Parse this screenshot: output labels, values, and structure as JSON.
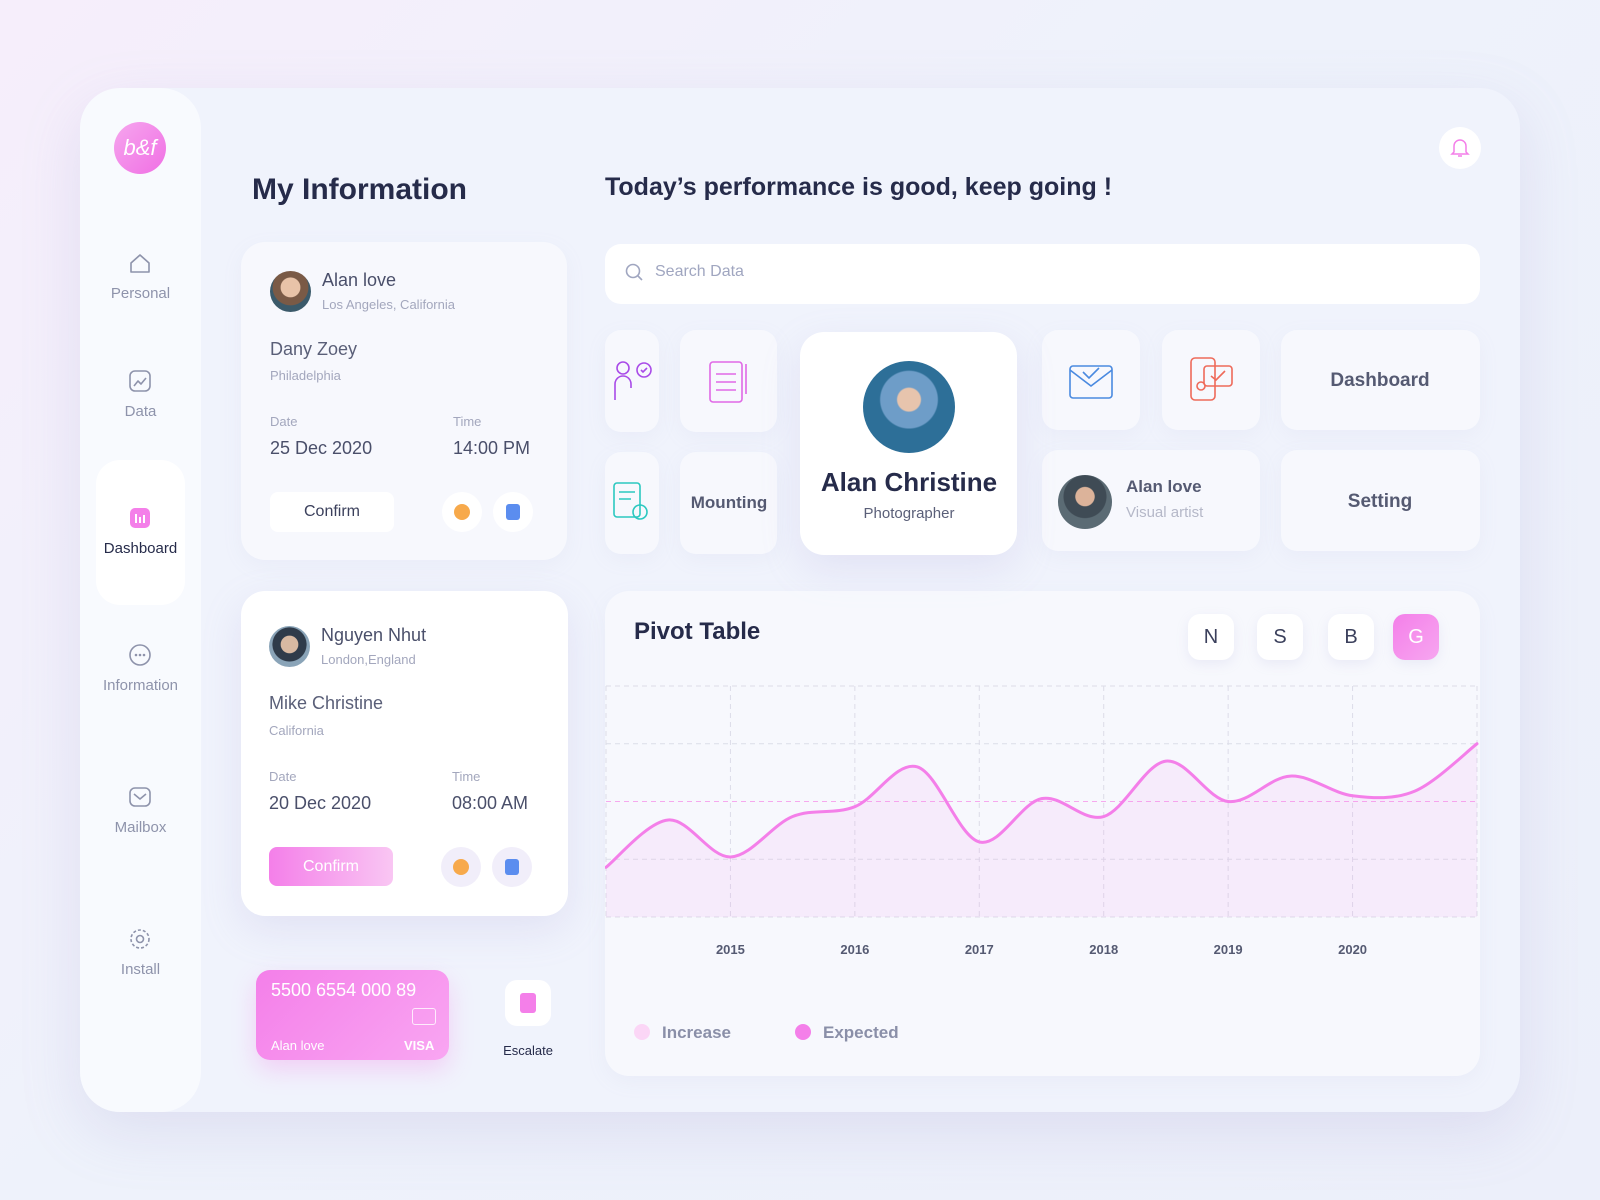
{
  "logo": "b&f",
  "sidebar": {
    "items": [
      "Personal",
      "Data",
      "Dashboard",
      "Information",
      "Mailbox",
      "Install"
    ]
  },
  "info": {
    "title": "My Information",
    "cards": [
      {
        "user": "Alan love",
        "location": "Los Angeles, California",
        "client": "Dany Zoey",
        "city": "Philadelphia",
        "date_label": "Date",
        "date": "25 Dec 2020",
        "time_label": "Time",
        "time": "14:00 PM",
        "button": "Confirm"
      },
      {
        "user": "Nguyen Nhut",
        "location": "London,England",
        "client": "Mike Christine",
        "city": "California",
        "date_label": "Date",
        "date": "20 Dec 2020",
        "time_label": "Time",
        "time": "08:00 AM",
        "button": "Confirm"
      }
    ]
  },
  "payment_card": {
    "number": "5500 6554 000 89",
    "holder": "Alan love",
    "brand": "VISA"
  },
  "escalate": "Escalate",
  "headline": "Today’s performance is good, keep going !",
  "search": {
    "placeholder": "Search Data"
  },
  "tiles": {
    "mounting": "Mounting",
    "dashboard": "Dashboard",
    "setting": "Setting"
  },
  "featured_profile": {
    "name": "Alan Christine",
    "role": "Photographer"
  },
  "mini_profile": {
    "name": "Alan love",
    "role": "Visual artist"
  },
  "chart_data": {
    "type": "line",
    "title": "Pivot Table",
    "filters": [
      "N",
      "S",
      "B",
      "G"
    ],
    "categories": [
      null,
      null,
      "2015",
      null,
      "2016",
      null,
      "2017",
      null,
      "2018",
      null,
      "2019",
      null,
      "2020",
      null,
      null
    ],
    "series": [
      {
        "name": "Expected",
        "color": "#f47fe9",
        "values": [
          0.86,
          1.68,
          1.04,
          1.74,
          1.91,
          2.6,
          1.3,
          2.05,
          1.74,
          2.7,
          2.0,
          2.44,
          2.1,
          2.18,
          3.0
        ]
      }
    ],
    "legend": [
      {
        "name": "Increase",
        "color": "#fbd6f6"
      }
    ],
    "ylim": [
      0,
      4
    ],
    "grid": true
  }
}
